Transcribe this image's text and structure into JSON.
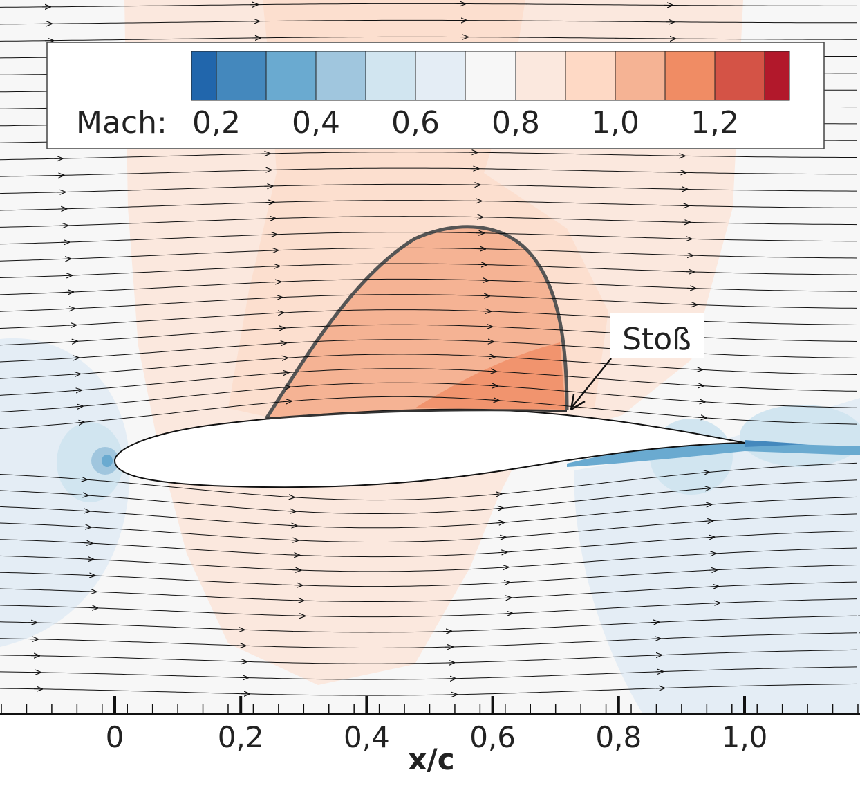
{
  "legend": {
    "title": "Mach:",
    "tick_labels": [
      "0,2",
      "0,4",
      "0,6",
      "0,8",
      "1,0",
      "1,2"
    ],
    "colors": [
      "#2166ac",
      "#4488bd",
      "#6aaad0",
      "#a0c6de",
      "#d1e5f0",
      "#e4edf5",
      "#f7f7f7",
      "#fbe8de",
      "#fed9c5",
      "#f5b394",
      "#f08c64",
      "#d45346",
      "#b2182b"
    ]
  },
  "annotation": {
    "label": "Stoß"
  },
  "axis": {
    "label": "x/c",
    "ticks": [
      {
        "value": 0,
        "label": "0"
      },
      {
        "value": 0.2,
        "label": "0,2"
      },
      {
        "value": 0.4,
        "label": "0,4"
      },
      {
        "value": 0.6,
        "label": "0,6"
      },
      {
        "value": 0.8,
        "label": "0,8"
      },
      {
        "value": 1.0,
        "label": "1,0"
      }
    ]
  }
}
